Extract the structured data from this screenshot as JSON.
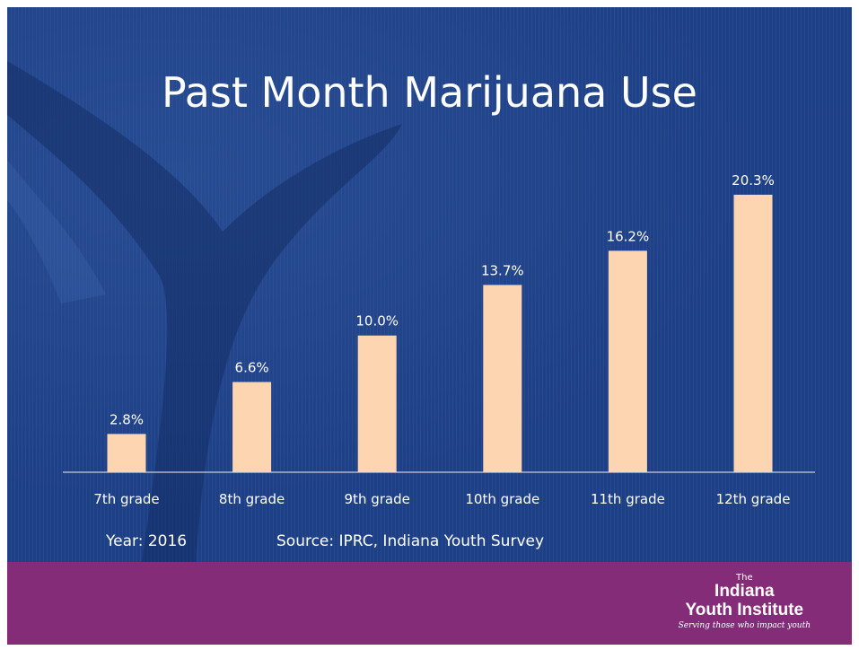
{
  "chart_data": {
    "type": "bar",
    "title": "Past Month Marijuana Use",
    "categories": [
      "7th grade",
      "8th grade",
      "9th grade",
      "10th grade",
      "11th grade",
      "12th grade"
    ],
    "values": [
      2.8,
      6.6,
      10.0,
      13.7,
      16.2,
      20.3
    ],
    "data_labels": [
      "2.8%",
      "6.6%",
      "10.0%",
      "13.7%",
      "16.2%",
      "20.3%"
    ],
    "xlabel": "",
    "ylabel": "",
    "ylim": [
      0,
      22
    ],
    "grid": false,
    "legend": "none",
    "bar_color": "#fdd5b1"
  },
  "footnotes": {
    "year": "Year: 2016",
    "source": "Source: IPRC, Indiana Youth Survey"
  },
  "logo": {
    "the": "The",
    "name_line1": "Indiana",
    "name_line2": "Youth Institute",
    "tagline": "Serving those who impact youth"
  },
  "colors": {
    "background": "#1d3f86",
    "band": "#852c79"
  }
}
